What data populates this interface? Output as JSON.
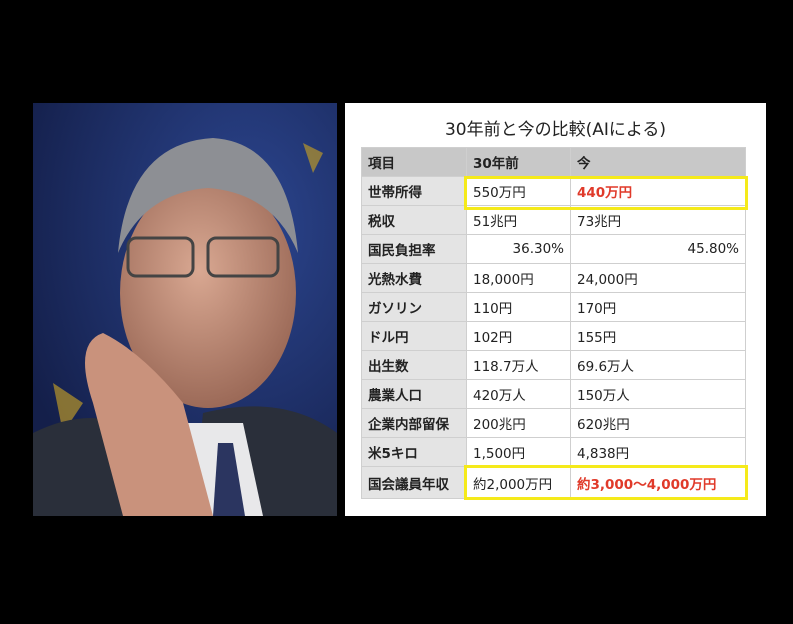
{
  "photo": {
    "description_icon": "person-photo"
  },
  "table": {
    "title": "30年前と今の比較(AIによる)",
    "headers": [
      "項目",
      "30年前",
      "今"
    ],
    "rows": [
      [
        "世帯所得",
        "550万円",
        "440万円"
      ],
      [
        "税収",
        "51兆円",
        "73兆円"
      ],
      [
        "国民負担率",
        "36.30%",
        "45.80%"
      ],
      [
        "光熱水費",
        "18,000円",
        "24,000円"
      ],
      [
        "ガソリン",
        "110円",
        "170円"
      ],
      [
        "ドル円",
        "102円",
        "155円"
      ],
      [
        "出生数",
        "118.7万人",
        "69.6万人"
      ],
      [
        "農業人口",
        "420万人",
        "150万人"
      ],
      [
        "企業内部留保",
        "200兆円",
        "620兆円"
      ],
      [
        "米5キロ",
        "1,500円",
        "4,838円"
      ],
      [
        "国会議員年収",
        "約2,000万円",
        "約3,000〜4,000万円"
      ]
    ],
    "highlight_color": "#f5ea1a",
    "emphasis_color": "#e03a2a"
  }
}
